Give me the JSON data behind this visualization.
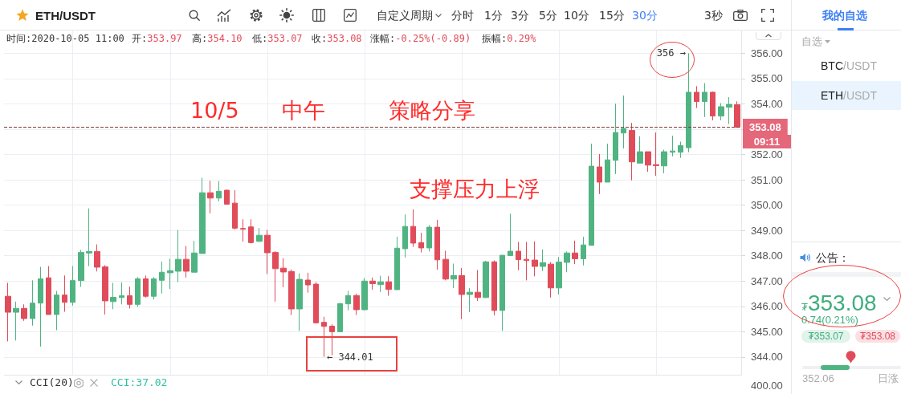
{
  "chart_data": {
    "type": "candlestick",
    "title": "ETH/USDT",
    "categories": [
      null,
      null,
      null,
      null,
      null,
      null,
      null,
      null,
      null,
      null,
      null,
      null,
      null,
      null,
      null,
      null,
      null,
      null,
      null,
      null,
      null,
      null,
      null,
      null,
      null,
      null,
      null,
      null,
      null,
      null,
      null,
      null,
      null,
      null,
      null,
      null,
      null,
      null,
      null,
      null,
      null,
      null,
      null,
      null,
      null,
      null,
      null,
      null,
      null,
      null,
      null,
      null,
      null,
      null,
      null,
      null,
      null,
      null,
      null,
      null,
      null,
      null,
      null,
      null,
      null,
      null,
      null,
      null,
      null,
      null,
      null,
      null,
      null,
      null,
      null,
      null,
      null,
      null,
      null,
      null,
      null,
      null,
      null,
      null,
      null,
      null,
      null,
      null,
      null,
      null,
      null
    ],
    "ohlc": [
      [
        346.4,
        346.93,
        344.62,
        345.77
      ],
      [
        345.77,
        346.19,
        344.65,
        345.92
      ],
      [
        345.92,
        346.08,
        345.43,
        345.52
      ],
      [
        345.52,
        347.03,
        345.24,
        346.13
      ],
      [
        346.13,
        347.56,
        344.41,
        347.09
      ],
      [
        347.13,
        347.59,
        345.68,
        345.68
      ],
      [
        345.68,
        346.61,
        345.06,
        346.45
      ],
      [
        346.45,
        347.22,
        345.79,
        346.16
      ],
      [
        346.16,
        347.59,
        346.03,
        347.02
      ],
      [
        347.02,
        348.23,
        346.77,
        348.13
      ],
      [
        348.11,
        349.87,
        347.59,
        348.17
      ],
      [
        348.17,
        348.45,
        347.38,
        347.55
      ],
      [
        347.56,
        347.63,
        345.68,
        346.22
      ],
      [
        346.19,
        346.93,
        345.89,
        346.36
      ],
      [
        346.35,
        346.95,
        346.08,
        346.42
      ],
      [
        346.42,
        346.78,
        345.92,
        346.08
      ],
      [
        346.08,
        347.16,
        345.98,
        347.09
      ],
      [
        347.09,
        347.22,
        346.35,
        346.4
      ],
      [
        346.4,
        347.16,
        346.27,
        347.09
      ],
      [
        347.03,
        347.77,
        346.51,
        347.35
      ],
      [
        347.33,
        347.88,
        346.69,
        347.41
      ],
      [
        347.39,
        349.02,
        346.96,
        347.86
      ],
      [
        347.86,
        348.39,
        347.14,
        347.39
      ],
      [
        347.35,
        348.59,
        347.35,
        348.11
      ],
      [
        348.09,
        351.08,
        348.09,
        350.49
      ],
      [
        350.49,
        350.96,
        349.68,
        350.28
      ],
      [
        350.28,
        350.95,
        350.15,
        350.55
      ],
      [
        350.59,
        350.61,
        350.04,
        350.04
      ],
      [
        350.08,
        350.59,
        349.04,
        349.09
      ],
      [
        349.08,
        349.44,
        348.56,
        349.05
      ],
      [
        349.14,
        349.44,
        348.49,
        348.52
      ],
      [
        348.57,
        349.1,
        348.54,
        348.81
      ],
      [
        348.81,
        349.02,
        347.28,
        348.12
      ],
      [
        348.13,
        348.18,
        346.19,
        347.49
      ],
      [
        347.51,
        347.9,
        346.76,
        347.36
      ],
      [
        347.38,
        347.46,
        345.66,
        345.9
      ],
      [
        345.9,
        347.3,
        345.03,
        347.07
      ],
      [
        347.04,
        347.33,
        346.54,
        346.85
      ],
      [
        346.88,
        346.96,
        345.32,
        345.35
      ],
      [
        345.37,
        345.59,
        344.01,
        345.21
      ],
      [
        345.22,
        345.29,
        344.07,
        345.0
      ],
      [
        345.0,
        346.14,
        345.0,
        346.11
      ],
      [
        346.1,
        346.61,
        345.84,
        346.43
      ],
      [
        346.43,
        346.5,
        345.66,
        345.87
      ],
      [
        345.87,
        347.12,
        345.84,
        347.0
      ],
      [
        347.0,
        347.14,
        346.66,
        346.9
      ],
      [
        346.86,
        347.21,
        346.57,
        346.97
      ],
      [
        346.97,
        347.19,
        346.42,
        346.67
      ],
      [
        346.66,
        348.75,
        346.66,
        348.3
      ],
      [
        348.28,
        349.63,
        347.93,
        349.16
      ],
      [
        349.16,
        349.83,
        348.35,
        348.5
      ],
      [
        348.52,
        348.91,
        348.13,
        348.31
      ],
      [
        348.31,
        349.21,
        348.17,
        349.13
      ],
      [
        349.13,
        349.42,
        347.45,
        347.84
      ],
      [
        347.86,
        348.2,
        347.03,
        347.08
      ],
      [
        347.08,
        347.69,
        346.72,
        347.22
      ],
      [
        347.22,
        347.52,
        345.5,
        346.47
      ],
      [
        346.47,
        346.72,
        345.77,
        346.56
      ],
      [
        346.56,
        347.44,
        346.22,
        346.35
      ],
      [
        346.35,
        347.8,
        346.33,
        347.76
      ],
      [
        347.76,
        347.82,
        345.64,
        345.84
      ],
      [
        345.84,
        348.02,
        345.03,
        348.02
      ],
      [
        348.01,
        349.66,
        348.01,
        348.18
      ],
      [
        348.18,
        348.55,
        347.43,
        347.85
      ],
      [
        347.86,
        348.55,
        347.03,
        347.81
      ],
      [
        347.83,
        348.57,
        347.19,
        347.58
      ],
      [
        347.58,
        348.25,
        347.4,
        347.73
      ],
      [
        347.67,
        347.75,
        346.35,
        346.73
      ],
      [
        346.73,
        347.95,
        346.47,
        347.75
      ],
      [
        347.74,
        348.17,
        347.35,
        348.11
      ],
      [
        348.11,
        348.6,
        347.67,
        347.88
      ],
      [
        347.88,
        348.75,
        347.62,
        348.43
      ],
      [
        348.41,
        352.43,
        348.41,
        351.54
      ],
      [
        351.51,
        352.02,
        350.44,
        350.91
      ],
      [
        350.91,
        352.43,
        350.91,
        351.79
      ],
      [
        351.77,
        354.01,
        351.23,
        352.87
      ],
      [
        352.85,
        354.33,
        352.24,
        353.03
      ],
      [
        352.95,
        353.25,
        350.98,
        351.71
      ],
      [
        351.66,
        352.72,
        351.66,
        352.11
      ],
      [
        352.11,
        352.11,
        351.32,
        351.58
      ],
      [
        351.6,
        352.87,
        351.16,
        351.56
      ],
      [
        351.55,
        352.19,
        351.26,
        352.11
      ],
      [
        352.09,
        352.74,
        351.93,
        352.14
      ],
      [
        352.09,
        352.51,
        351.87,
        352.35
      ],
      [
        352.27,
        356.0,
        352.09,
        354.46
      ],
      [
        354.46,
        354.7,
        353.84,
        354.09
      ],
      [
        354.09,
        354.82,
        353.48,
        354.46
      ],
      [
        354.46,
        354.49,
        353.35,
        353.52
      ],
      [
        353.52,
        354.03,
        353.35,
        353.89
      ],
      [
        353.87,
        354.27,
        353.2,
        353.98
      ],
      [
        353.97,
        354.1,
        353.07,
        353.08
      ]
    ],
    "colors": [
      "#e04c5a",
      "#50b482",
      "#e04c5a",
      "#50b482",
      "#50b482",
      "#e04c5a",
      "#50b482",
      "#e04c5a",
      "#50b482",
      "#50b482",
      "#50b482",
      "#e04c5a",
      "#e04c5a",
      "#50b482",
      "#50b482",
      "#e04c5a",
      "#50b482",
      "#e04c5a",
      "#50b482",
      "#50b482",
      "#50b482",
      "#50b482",
      "#e04c5a",
      "#50b482",
      "#50b482",
      "#e04c5a",
      "#50b482",
      "#e04c5a",
      "#e04c5a",
      "#e04c5a",
      "#e04c5a",
      "#50b482",
      "#e04c5a",
      "#e04c5a",
      "#e04c5a",
      "#e04c5a",
      "#50b482",
      "#e04c5a",
      "#e04c5a",
      "#e04c5a",
      "#e04c5a",
      "#50b482",
      "#50b482",
      "#e04c5a",
      "#50b482",
      "#e04c5a",
      "#50b482",
      "#e04c5a",
      "#50b482",
      "#50b482",
      "#e04c5a",
      "#e04c5a",
      "#50b482",
      "#e04c5a",
      "#e04c5a",
      "#50b482",
      "#e04c5a",
      "#50b482",
      "#e04c5a",
      "#50b482",
      "#e04c5a",
      "#50b482",
      "#50b482",
      "#e04c5a",
      "#e04c5a",
      "#e04c5a",
      "#50b482",
      "#e04c5a",
      "#50b482",
      "#50b482",
      "#e04c5a",
      "#50b482",
      "#50b482",
      "#e04c5a",
      "#50b482",
      "#50b482",
      "#50b482",
      "#e04c5a",
      "#50b482",
      "#e04c5a",
      "#e04c5a",
      "#50b482",
      "#50b482",
      "#50b482",
      "#50b482",
      "#e04c5a",
      "#50b482",
      "#e04c5a",
      "#50b482",
      "#50b482",
      "#e04c5a"
    ],
    "ylim": [
      343.3,
      356.9
    ],
    "yticks": [
      {
        "value": 344,
        "label": "344.00"
      },
      {
        "value": 345,
        "label": "345.00"
      },
      {
        "value": 346,
        "label": "346.00"
      },
      {
        "value": 347,
        "label": "347.00"
      },
      {
        "value": 348,
        "label": "348.00"
      },
      {
        "value": 349,
        "label": "349.00"
      },
      {
        "value": 350,
        "label": "350.00"
      },
      {
        "value": 351,
        "label": "351.00"
      },
      {
        "value": 352,
        "label": "352.00"
      },
      {
        "value": 353,
        "label": null
      },
      {
        "value": 354,
        "label": "354.00"
      },
      {
        "value": 355,
        "label": "355.00"
      },
      {
        "value": 356,
        "label": "356.00"
      }
    ],
    "tick_labels": "y",
    "grid": true,
    "ref_lines": [
      {
        "axis": "y",
        "value": 353.08,
        "label": "353.08",
        "color": "#7d3a3a",
        "line_style": "dashed"
      }
    ],
    "annotations": [
      "356 →",
      "← 344.01",
      "09:11",
      "10/5",
      "中午",
      "策略分享",
      "支撑压力上浮",
      "时间:2020-10-05 11:00",
      "开:353.97",
      "高:354.10",
      "低:353.07",
      "收:353.08",
      "涨幅:-0.25%(-0.89)",
      "振幅:0.29%",
      "自定义周期",
      "分时",
      "1分",
      "3分",
      "5分",
      "10分",
      "15分",
      "30分",
      "3秒",
      "CCI(20)",
      "CCI:37.02",
      "400.00",
      "我的自选",
      "自选",
      "BTC/USDT",
      "ETH/USDT",
      "公告：",
      "₮353.08",
      "0.74(0.21%)",
      "₮353.07",
      "₮353.08",
      "352.06",
      "日涨"
    ]
  }
}
